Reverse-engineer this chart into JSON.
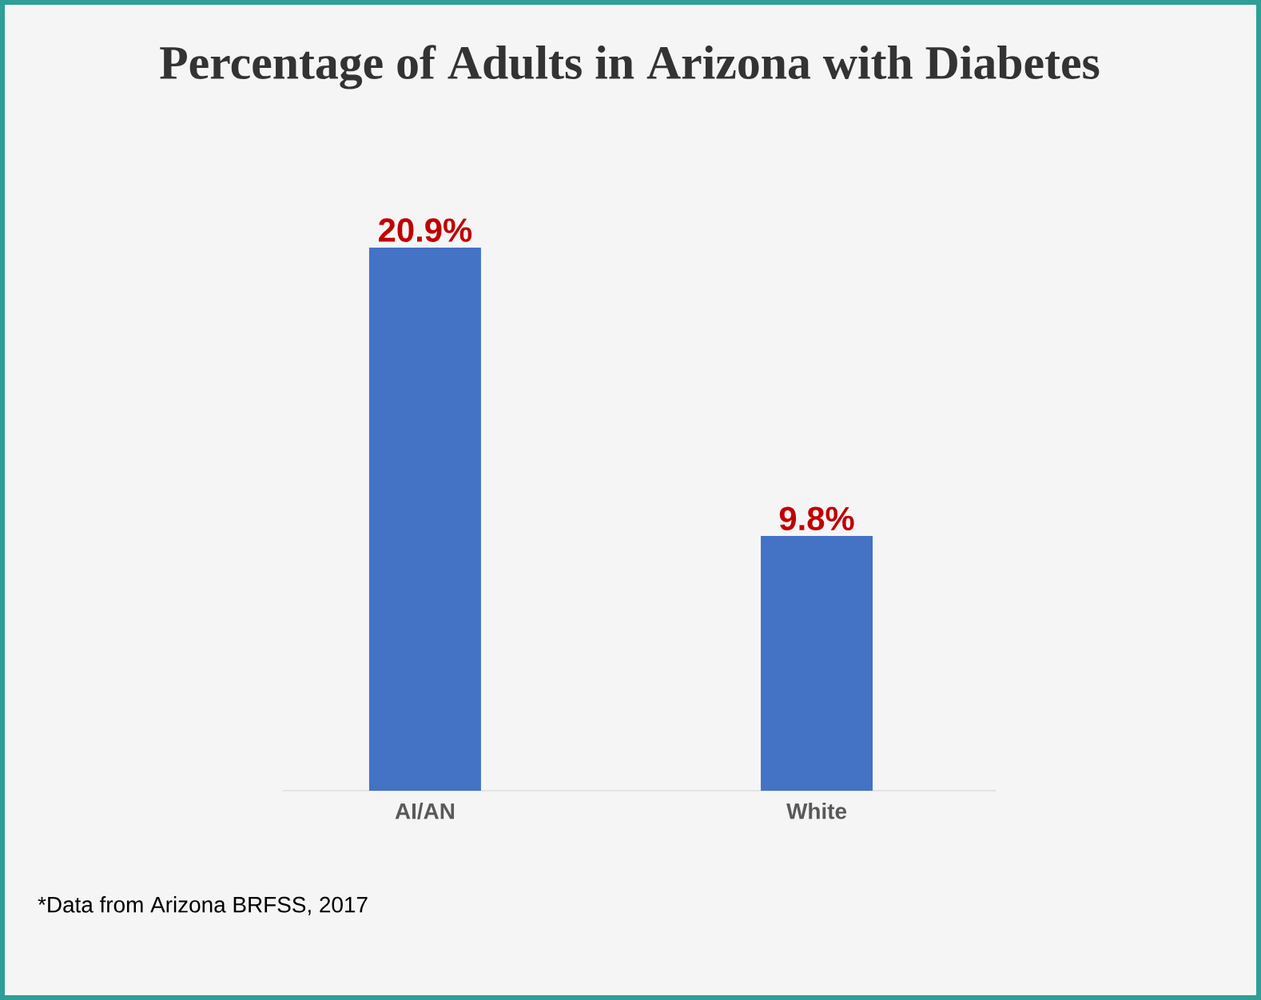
{
  "chart_data": {
    "type": "bar",
    "title": "Percentage of Adults in Arizona with Diabetes",
    "categories": [
      "AI/AN",
      "White"
    ],
    "values": [
      20.9,
      9.8
    ],
    "value_labels": [
      "20.9%",
      "9.8%"
    ],
    "color": "#4472c4",
    "annotations": [
      "*Data from Arizona BRFSS, 2017"
    ]
  }
}
